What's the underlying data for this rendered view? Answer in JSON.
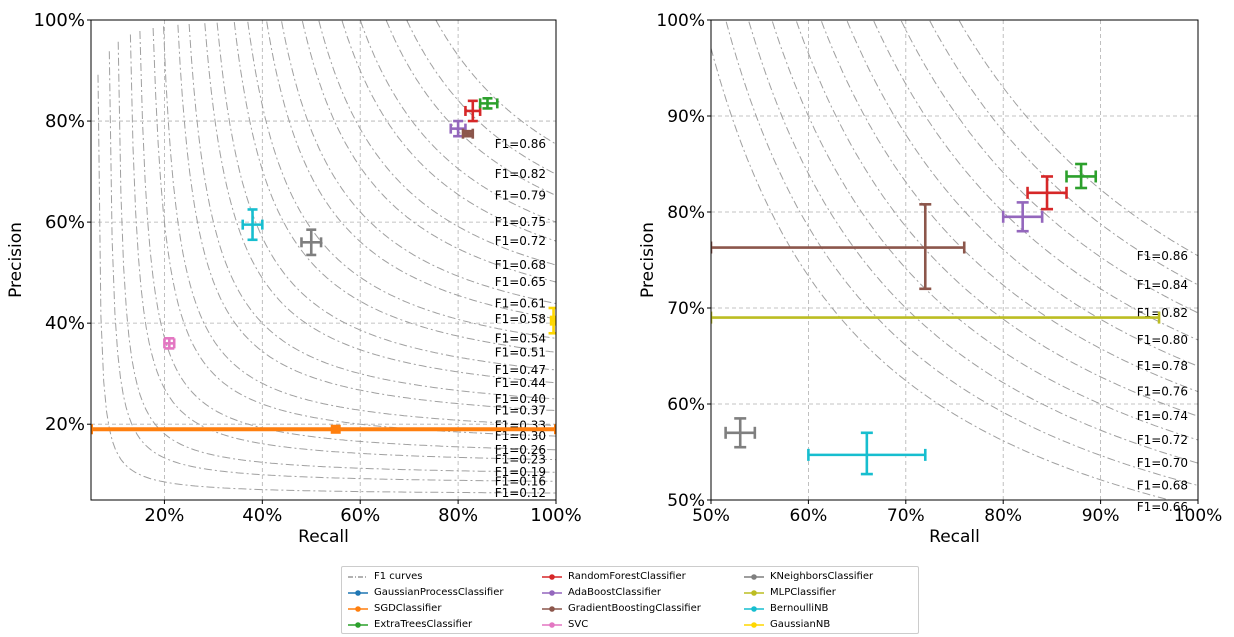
{
  "chart_data": [
    {
      "type": "scatter",
      "title": "",
      "xlabel": "Recall",
      "ylabel": "Precision",
      "xlim": [
        0.05,
        1.0
      ],
      "ylim": [
        0.05,
        1.0
      ],
      "xticks": [
        0.2,
        0.4,
        0.6,
        0.8,
        1.0
      ],
      "xtick_labels": [
        "20%",
        "40%",
        "60%",
        "80%",
        "100%"
      ],
      "yticks": [
        0.2,
        0.4,
        0.6,
        0.8,
        1.0
      ],
      "ytick_labels": [
        "20%",
        "40%",
        "60%",
        "80%",
        "100%"
      ],
      "grid": true,
      "f1_curves": [
        0.12,
        0.16,
        0.19,
        0.23,
        0.26,
        0.3,
        0.33,
        0.37,
        0.4,
        0.44,
        0.47,
        0.51,
        0.54,
        0.58,
        0.61,
        0.65,
        0.68,
        0.72,
        0.75,
        0.79,
        0.82,
        0.86
      ],
      "f1_labels": [
        "F1=0.12",
        "F1=0.16",
        "F1=0.19",
        "F1=0.23",
        "F1=0.26",
        "F1=0.30",
        "F1=0.33",
        "F1=0.37",
        "F1=0.40",
        "F1=0.44",
        "F1=0.47",
        "F1=0.51",
        "F1=0.54",
        "F1=0.58",
        "F1=0.61",
        "F1=0.65",
        "F1=0.68",
        "F1=0.72",
        "F1=0.75",
        "F1=0.79",
        "F1=0.82",
        "F1=0.86"
      ],
      "points": [
        {
          "name": "RandomForestClassifier",
          "color": "#d62728",
          "recall": 0.83,
          "precision": 0.82,
          "recall_err": [
            0.815,
            0.845
          ],
          "precision_err": [
            0.8,
            0.84
          ]
        },
        {
          "name": "ExtraTreesClassifier",
          "color": "#2ca02c",
          "recall": 0.86,
          "precision": 0.835,
          "recall_err": [
            0.845,
            0.88
          ],
          "precision_err": [
            0.825,
            0.845
          ]
        },
        {
          "name": "AdaBoostClassifier",
          "color": "#9467bd",
          "recall": 0.8,
          "precision": 0.785,
          "recall_err": [
            0.785,
            0.815
          ],
          "precision_err": [
            0.77,
            0.8
          ]
        },
        {
          "name": "GradientBoostingClassifier",
          "color": "#8c564b",
          "recall": 0.82,
          "precision": 0.775,
          "recall_err": [
            0.81,
            0.83
          ],
          "precision_err": [
            0.77,
            0.78
          ]
        },
        {
          "name": "BernoulliNB",
          "color": "#17becf",
          "recall": 0.38,
          "precision": 0.595,
          "recall_err": [
            0.36,
            0.4
          ],
          "precision_err": [
            0.565,
            0.625
          ]
        },
        {
          "name": "KNeighborsClassifier",
          "color": "#7f7f7f",
          "recall": 0.5,
          "precision": 0.56,
          "recall_err": [
            0.48,
            0.52
          ],
          "precision_err": [
            0.535,
            0.585
          ]
        },
        {
          "name": "SVC",
          "color": "#e377c2",
          "recall": 0.21,
          "precision": 0.36,
          "recall_err": [
            0.2,
            0.22
          ],
          "precision_err": [
            0.35,
            0.37
          ]
        },
        {
          "name": "SGDClassifier",
          "color": "#ff7f0e",
          "recall": 0.55,
          "precision": 0.19,
          "recall_err": [
            0.05,
            1.0
          ],
          "precision_err": [
            0.185,
            0.195
          ],
          "thick": true
        },
        {
          "name": "GaussianNB",
          "color": "#ffd700",
          "recall": 0.995,
          "precision": 0.405,
          "recall_err": [
            0.99,
            1.0
          ],
          "precision_err": [
            0.38,
            0.43
          ]
        }
      ]
    },
    {
      "type": "scatter",
      "title": "",
      "xlabel": "Recall",
      "ylabel": "Precision",
      "xlim": [
        0.5,
        1.0
      ],
      "ylim": [
        0.5,
        1.0
      ],
      "xticks": [
        0.5,
        0.6,
        0.7,
        0.8,
        0.9,
        1.0
      ],
      "xtick_labels": [
        "50%",
        "60%",
        "70%",
        "80%",
        "90%",
        "100%"
      ],
      "yticks": [
        0.5,
        0.6,
        0.7,
        0.8,
        0.9,
        1.0
      ],
      "ytick_labels": [
        "50%",
        "60%",
        "70%",
        "80%",
        "90%",
        "100%"
      ],
      "grid": true,
      "f1_curves": [
        0.66,
        0.68,
        0.7,
        0.72,
        0.74,
        0.76,
        0.78,
        0.8,
        0.82,
        0.84,
        0.86
      ],
      "f1_labels": [
        "F1=0.66",
        "F1=0.68",
        "F1=0.70",
        "F1=0.72",
        "F1=0.74",
        "F1=0.76",
        "F1=0.78",
        "F1=0.80",
        "F1=0.82",
        "F1=0.84",
        "F1=0.86"
      ],
      "points": [
        {
          "name": "ExtraTreesClassifier",
          "color": "#2ca02c",
          "recall": 0.88,
          "precision": 0.837,
          "recall_err": [
            0.865,
            0.895
          ],
          "precision_err": [
            0.825,
            0.85
          ]
        },
        {
          "name": "RandomForestClassifier",
          "color": "#d62728",
          "recall": 0.845,
          "precision": 0.82,
          "recall_err": [
            0.825,
            0.865
          ],
          "precision_err": [
            0.803,
            0.837
          ]
        },
        {
          "name": "AdaBoostClassifier",
          "color": "#9467bd",
          "recall": 0.82,
          "precision": 0.795,
          "recall_err": [
            0.8,
            0.84
          ],
          "precision_err": [
            0.78,
            0.81
          ]
        },
        {
          "name": "GradientBoostingClassifier",
          "color": "#8c564b",
          "recall": 0.72,
          "precision": 0.763,
          "recall_err": [
            0.5,
            0.76
          ],
          "precision_err": [
            0.72,
            0.808
          ]
        },
        {
          "name": "MLPClassifier",
          "color": "#bcbd22",
          "recall": 0.72,
          "precision": 0.69,
          "recall_err": [
            0.5,
            0.96
          ],
          "precision_err": [
            0.69,
            0.69
          ]
        },
        {
          "name": "KNeighborsClassifier",
          "color": "#7f7f7f",
          "recall": 0.53,
          "precision": 0.57,
          "recall_err": [
            0.515,
            0.545
          ],
          "precision_err": [
            0.555,
            0.585
          ]
        },
        {
          "name": "BernoulliNB",
          "color": "#17becf",
          "recall": 0.66,
          "precision": 0.547,
          "recall_err": [
            0.6,
            0.72
          ],
          "precision_err": [
            0.527,
            0.57
          ]
        }
      ]
    }
  ],
  "legend": [
    {
      "label": "F1 curves",
      "color": "#999999",
      "kind": "dashdot"
    },
    {
      "label": "GaussianProcessClassifier",
      "color": "#1f77b4"
    },
    {
      "label": "SGDClassifier",
      "color": "#ff7f0e"
    },
    {
      "label": "ExtraTreesClassifier",
      "color": "#2ca02c"
    },
    {
      "label": "RandomForestClassifier",
      "color": "#d62728"
    },
    {
      "label": "AdaBoostClassifier",
      "color": "#9467bd"
    },
    {
      "label": "GradientBoostingClassifier",
      "color": "#8c564b"
    },
    {
      "label": "SVC",
      "color": "#e377c2"
    },
    {
      "label": "KNeighborsClassifier",
      "color": "#7f7f7f"
    },
    {
      "label": "MLPClassifier",
      "color": "#bcbd22"
    },
    {
      "label": "BernoulliNB",
      "color": "#17becf"
    },
    {
      "label": "GaussianNB",
      "color": "#ffd700"
    }
  ]
}
